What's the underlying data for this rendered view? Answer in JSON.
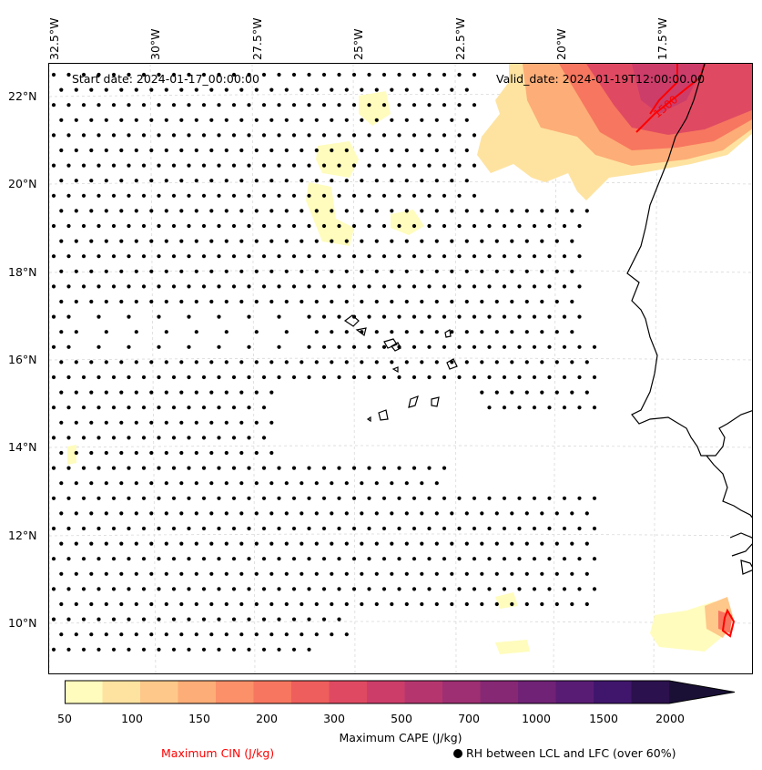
{
  "map": {
    "start_date": "Start date: 2024-01-17_00:00:00",
    "valid_date": "Valid_date: 2024-01-19T12:00:00.00",
    "lon_labels": [
      "32.5°W",
      "30°W",
      "27.5°W",
      "25°W",
      "22.5°W",
      "20°W",
      "17.5°W"
    ],
    "lat_labels": [
      "22°N",
      "20°N",
      "18°N",
      "16°N",
      "14°N",
      "12°N",
      "10°N"
    ],
    "cin_contour_label": "1500",
    "colors": {
      "cin_contour": "#ff0000",
      "rh_dots": "#000000",
      "coastline": "#000000",
      "gridlines": "#cccccc"
    }
  },
  "colorbar": {
    "label": "Maximum CAPE (J/kg)",
    "ticks": [
      "50",
      "100",
      "150",
      "200",
      "300",
      "500",
      "700",
      "1000",
      "1500",
      "2000"
    ],
    "colors": [
      "#fffcbd",
      "#fee3a0",
      "#fec88a",
      "#fdad77",
      "#fb9069",
      "#f7765f",
      "#ee5e5c",
      "#df4a62",
      "#cc3d6a",
      "#b5366f",
      "#9e2f72",
      "#872874",
      "#702276",
      "#591c74",
      "#40166c",
      "#2b114d",
      "#1a1036"
    ]
  },
  "legend": {
    "cin": "Maximum CIN (J/kg)",
    "rh": "RH between LCL and LFC (over 60%)"
  }
}
